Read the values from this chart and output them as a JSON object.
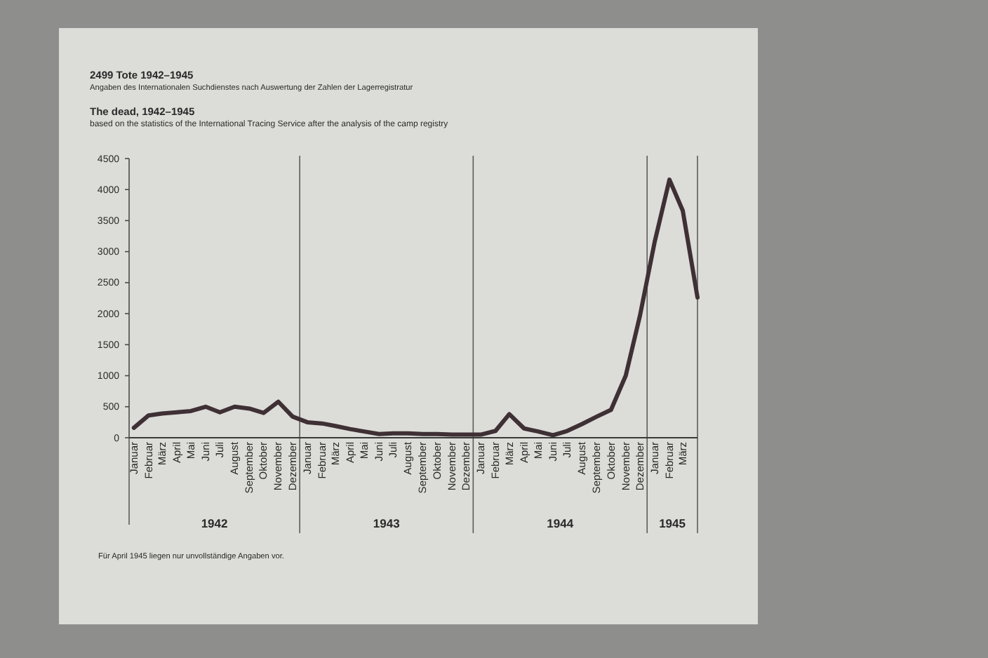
{
  "chart_data": {
    "type": "line",
    "title": "2499 Tote 1942–1945",
    "subtitle": "Angaben des Internationalen Suchdienstes nach Auswertung der Zahlen der Lagerregistratur",
    "annotations": [
      "The dead, 1942–1945",
      "based on the statistics of the International Tracing Service after the analysis of the camp registry",
      "1942",
      "1943",
      "1944",
      "1945",
      "Für April 1945 liegen nur unvollständige Angaben vor."
    ],
    "x": [
      "1942-01",
      "1942-02",
      "1942-03",
      "1942-04",
      "1942-05",
      "1942-06",
      "1942-07",
      "1942-08",
      "1942-09",
      "1942-10",
      "1942-11",
      "1942-12",
      "1943-01",
      "1943-02",
      "1943-03",
      "1943-04",
      "1943-05",
      "1943-06",
      "1943-07",
      "1943-08",
      "1943-09",
      "1943-10",
      "1943-11",
      "1943-12",
      "1944-01",
      "1944-02",
      "1944-03",
      "1944-04",
      "1944-05",
      "1944-06",
      "1944-07",
      "1944-08",
      "1944-09",
      "1944-10",
      "1944-11",
      "1944-12",
      "1945-01",
      "1945-02",
      "1945-03",
      "1945-04"
    ],
    "values": [
      160,
      360,
      390,
      410,
      430,
      500,
      410,
      500,
      470,
      400,
      580,
      340,
      250,
      230,
      190,
      140,
      100,
      60,
      70,
      70,
      60,
      60,
      50,
      50,
      50,
      110,
      380,
      150,
      100,
      40,
      110,
      220,
      340,
      450,
      1000,
      1970,
      3160,
      4160,
      3660,
      2260
    ],
    "color": "#3e3035",
    "line_style": "solid",
    "grid": false,
    "xlim": [
      "1941-12-22",
      "1945-04"
    ],
    "xticks": [
      {
        "value": "1942-01",
        "label": "Januar"
      },
      {
        "value": "1942-02",
        "label": "Februar"
      },
      {
        "value": "1942-03",
        "label": "März"
      },
      {
        "value": "1942-04",
        "label": "April"
      },
      {
        "value": "1942-05",
        "label": "Mai"
      },
      {
        "value": "1942-06",
        "label": "Juni"
      },
      {
        "value": "1942-07",
        "label": "Juli"
      },
      {
        "value": "1942-08",
        "label": "August"
      },
      {
        "value": "1942-09",
        "label": "September"
      },
      {
        "value": "1942-10",
        "label": "Oktober"
      },
      {
        "value": "1942-11",
        "label": "November"
      },
      {
        "value": "1942-12",
        "label": "Dezember"
      },
      {
        "value": "1943-01",
        "label": "Januar"
      },
      {
        "value": "1943-02",
        "label": "Februar"
      },
      {
        "value": "1943-03",
        "label": "März"
      },
      {
        "value": "1943-04",
        "label": "April"
      },
      {
        "value": "1943-05",
        "label": "Mai"
      },
      {
        "value": "1943-06",
        "label": "Juni"
      },
      {
        "value": "1943-07",
        "label": "Juli"
      },
      {
        "value": "1943-08",
        "label": "August"
      },
      {
        "value": "1943-09",
        "label": "September"
      },
      {
        "value": "1943-10",
        "label": "Oktober"
      },
      {
        "value": "1943-11",
        "label": "November"
      },
      {
        "value": "1943-12",
        "label": "Dezember"
      },
      {
        "value": "1944-01",
        "label": "Januar"
      },
      {
        "value": "1944-02",
        "label": "Februar"
      },
      {
        "value": "1944-03",
        "label": "März"
      },
      {
        "value": "1944-04",
        "label": "April"
      },
      {
        "value": "1944-05",
        "label": "Mai"
      },
      {
        "value": "1944-06",
        "label": "Juni"
      },
      {
        "value": "1944-07",
        "label": "Juli"
      },
      {
        "value": "1944-08",
        "label": "August"
      },
      {
        "value": "1944-09",
        "label": "September"
      },
      {
        "value": "1944-10",
        "label": "Oktober"
      },
      {
        "value": "1944-11",
        "label": "November"
      },
      {
        "value": "1944-12",
        "label": "Dezember"
      },
      {
        "value": "1945-01",
        "label": "Januar"
      },
      {
        "value": "1945-02",
        "label": "Februar"
      },
      {
        "value": "1945-03",
        "label": "März"
      }
    ],
    "ylim": [
      0,
      4500
    ],
    "yticks": [
      0,
      500,
      1000,
      1500,
      2000,
      2500,
      3000,
      3500,
      4000,
      4500
    ],
    "ref_lines": [
      {
        "axis": "x",
        "value": "1942-12-16",
        "color": "#5c5c5c"
      },
      {
        "axis": "x",
        "value": "1943-12-16",
        "color": "#5c5c5c"
      },
      {
        "axis": "x",
        "value": "1944-12-16",
        "color": "#5c5c5c"
      }
    ]
  }
}
